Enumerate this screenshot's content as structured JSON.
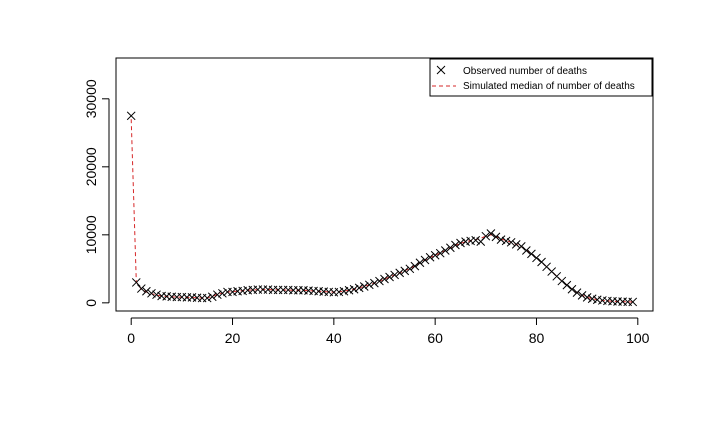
{
  "chart_data": {
    "type": "scatter",
    "title": "",
    "xlabel": "",
    "ylabel": "",
    "xlim": [
      -3,
      103
    ],
    "ylim": [
      -1200,
      36000
    ],
    "x_ticks": [
      0,
      20,
      40,
      60,
      80,
      100
    ],
    "y_ticks": [
      0,
      10000,
      20000,
      30000
    ],
    "grid": false,
    "legend_position": "top-right",
    "series": [
      {
        "name": "Observed number of deaths",
        "marker": "x",
        "color": "#000000",
        "x": [
          0,
          1,
          2,
          3,
          4,
          5,
          6,
          7,
          8,
          9,
          10,
          11,
          12,
          13,
          14,
          15,
          16,
          17,
          18,
          19,
          20,
          21,
          22,
          23,
          24,
          25,
          26,
          27,
          28,
          29,
          30,
          31,
          32,
          33,
          34,
          35,
          36,
          37,
          38,
          39,
          40,
          41,
          42,
          43,
          44,
          45,
          46,
          47,
          48,
          49,
          50,
          51,
          52,
          53,
          54,
          55,
          56,
          57,
          58,
          59,
          60,
          61,
          62,
          63,
          64,
          65,
          66,
          67,
          68,
          69,
          70,
          71,
          72,
          73,
          74,
          75,
          76,
          77,
          78,
          79,
          80,
          81,
          82,
          83,
          84,
          85,
          86,
          87,
          88,
          89,
          90,
          91,
          92,
          93,
          94,
          95,
          96,
          97,
          98,
          99
        ],
        "y": [
          27500,
          3000,
          2100,
          1700,
          1400,
          1200,
          1000,
          950,
          900,
          850,
          850,
          800,
          800,
          750,
          700,
          700,
          900,
          1200,
          1400,
          1600,
          1600,
          1700,
          1750,
          1850,
          1900,
          1950,
          1950,
          1950,
          1900,
          1900,
          1900,
          1900,
          1850,
          1850,
          1850,
          1800,
          1750,
          1700,
          1650,
          1600,
          1550,
          1600,
          1700,
          1850,
          2000,
          2200,
          2400,
          2650,
          2900,
          3200,
          3500,
          3800,
          4100,
          4400,
          4700,
          5000,
          5400,
          5900,
          6300,
          6700,
          7000,
          7300,
          7700,
          8100,
          8500,
          8800,
          9000,
          9100,
          9200,
          9000,
          9800,
          10200,
          9700,
          9300,
          9100,
          8900,
          8600,
          8300,
          7700,
          7200,
          6600,
          6000,
          5300,
          4600,
          3900,
          3200,
          2600,
          2000,
          1500,
          1100,
          800,
          600,
          450,
          350,
          280,
          230,
          200,
          180,
          150,
          130
        ],
        "y_note_omitted": false
      },
      {
        "name": "Simulated median of number of deaths",
        "line_style": "dashed",
        "color": "#d62728",
        "x": [
          0,
          1,
          2,
          3,
          4,
          5,
          6,
          7,
          8,
          9,
          10,
          11,
          12,
          13,
          14,
          15,
          16,
          17,
          18,
          19,
          20,
          21,
          22,
          23,
          24,
          25,
          26,
          27,
          28,
          29,
          30,
          31,
          32,
          33,
          34,
          35,
          36,
          37,
          38,
          39,
          40,
          41,
          42,
          43,
          44,
          45,
          46,
          47,
          48,
          49,
          50,
          51,
          52,
          53,
          54,
          55,
          56,
          57,
          58,
          59,
          60,
          61,
          62,
          63,
          64,
          65,
          66,
          67,
          68,
          69,
          70,
          71,
          72,
          73,
          74,
          75,
          76,
          77,
          78,
          79,
          80,
          81,
          82,
          83,
          84,
          85,
          86,
          87,
          88,
          89,
          90,
          91,
          92,
          93,
          94,
          95,
          96,
          97,
          98,
          99
        ],
        "y": [
          27000,
          3100,
          2000,
          1600,
          1350,
          1150,
          1000,
          930,
          880,
          840,
          820,
          790,
          770,
          740,
          720,
          740,
          950,
          1250,
          1450,
          1600,
          1650,
          1720,
          1780,
          1850,
          1900,
          1930,
          1950,
          1940,
          1920,
          1900,
          1890,
          1880,
          1860,
          1850,
          1840,
          1800,
          1750,
          1700,
          1650,
          1610,
          1580,
          1620,
          1720,
          1860,
          2010,
          2200,
          2420,
          2660,
          2920,
          3200,
          3500,
          3800,
          4100,
          4420,
          4720,
          5050,
          5450,
          5900,
          6300,
          6650,
          7000,
          7320,
          7700,
          8080,
          8450,
          8750,
          8980,
          9150,
          9300,
          9500,
          9800,
          10000,
          9750,
          9400,
          9150,
          8900,
          8600,
          8250,
          7750,
          7200,
          6600,
          5980,
          5300,
          4620,
          3920,
          3220,
          2620,
          2030,
          1520,
          1120,
          820,
          610,
          460,
          350,
          280,
          230,
          200,
          175,
          150,
          130
        ]
      }
    ]
  }
}
